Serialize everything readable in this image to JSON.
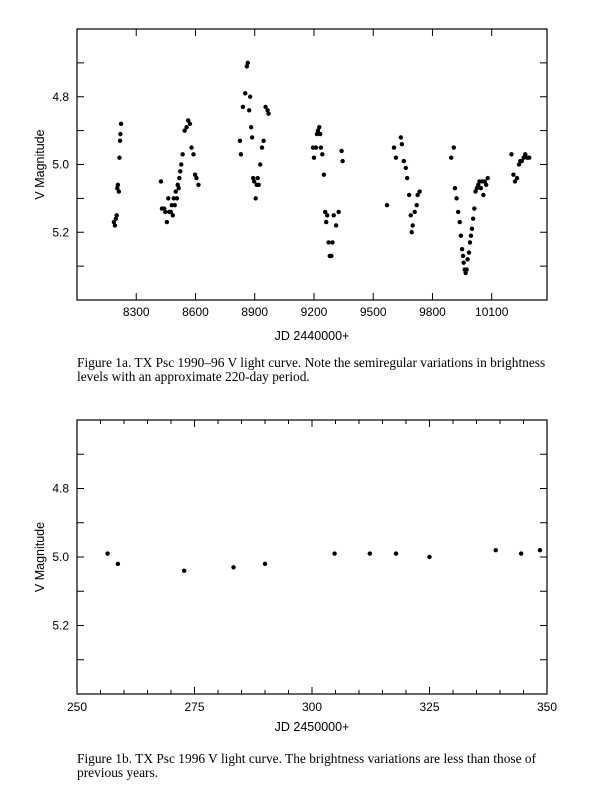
{
  "figures": [
    {
      "id": "fig1a",
      "caption": "Figure 1a. TX Psc 1990–96 V light curve. Note the semiregular variations in brightness levels with an approximate 220-day period.",
      "chart_data": {
        "type": "scatter",
        "title": "",
        "xlabel": "JD 2440000+",
        "ylabel": "V Magnitude",
        "xlim": [
          8000,
          10380
        ],
        "ylim": [
          5.4,
          4.6
        ],
        "y_inverted": true,
        "xticks": [
          8300,
          8600,
          8900,
          9200,
          9500,
          9800,
          10100
        ],
        "xticklabels": [
          "8300",
          "8600",
          "8900",
          "9200",
          "9500",
          "9800",
          "10100"
        ],
        "yticks": [
          4.7,
          4.8,
          4.9,
          5.0,
          5.1,
          5.2,
          5.3
        ],
        "yticklabels": [
          "",
          "4.8",
          "",
          "5.0",
          "",
          "5.2",
          ""
        ],
        "grid": false,
        "points": [
          [
            8187,
            5.17
          ],
          [
            8192,
            5.18
          ],
          [
            8197,
            5.16
          ],
          [
            8201,
            5.15
          ],
          [
            8204,
            5.07
          ],
          [
            8207,
            5.06
          ],
          [
            8212,
            5.08
          ],
          [
            8215,
            4.98
          ],
          [
            8218,
            4.93
          ],
          [
            8220,
            4.91
          ],
          [
            8223,
            4.88
          ],
          [
            8425,
            5.05
          ],
          [
            8430,
            5.13
          ],
          [
            8442,
            5.13
          ],
          [
            8447,
            5.14
          ],
          [
            8455,
            5.17
          ],
          [
            8462,
            5.1
          ],
          [
            8467,
            5.14
          ],
          [
            8475,
            5.14
          ],
          [
            8480,
            5.12
          ],
          [
            8485,
            5.15
          ],
          [
            8490,
            5.1
          ],
          [
            8495,
            5.12
          ],
          [
            8500,
            5.08
          ],
          [
            8506,
            5.1
          ],
          [
            8510,
            5.06
          ],
          [
            8515,
            5.07
          ],
          [
            8518,
            5.04
          ],
          [
            8523,
            5.02
          ],
          [
            8528,
            5.0
          ],
          [
            8535,
            4.97
          ],
          [
            8545,
            4.9
          ],
          [
            8555,
            4.89
          ],
          [
            8563,
            4.87
          ],
          [
            8572,
            4.88
          ],
          [
            8580,
            4.95
          ],
          [
            8590,
            4.97
          ],
          [
            8598,
            5.03
          ],
          [
            8605,
            5.04
          ],
          [
            8615,
            5.06
          ],
          [
            8825,
            4.93
          ],
          [
            8830,
            4.97
          ],
          [
            8840,
            4.83
          ],
          [
            8852,
            4.79
          ],
          [
            8860,
            4.71
          ],
          [
            8865,
            4.7
          ],
          [
            8872,
            4.84
          ],
          [
            8877,
            4.8
          ],
          [
            8882,
            4.89
          ],
          [
            8887,
            4.92
          ],
          [
            8892,
            5.04
          ],
          [
            8897,
            5.05
          ],
          [
            8905,
            5.1
          ],
          [
            8910,
            5.06
          ],
          [
            8915,
            5.04
          ],
          [
            8920,
            5.06
          ],
          [
            8928,
            5.0
          ],
          [
            8937,
            4.95
          ],
          [
            8945,
            4.93
          ],
          [
            8955,
            4.83
          ],
          [
            8965,
            4.84
          ],
          [
            8970,
            4.85
          ],
          [
            9195,
            4.95
          ],
          [
            9200,
            4.98
          ],
          [
            9210,
            4.95
          ],
          [
            9215,
            4.91
          ],
          [
            9220,
            4.9
          ],
          [
            9227,
            4.89
          ],
          [
            9232,
            4.91
          ],
          [
            9235,
            4.95
          ],
          [
            9242,
            4.97
          ],
          [
            9250,
            5.03
          ],
          [
            9257,
            5.14
          ],
          [
            9262,
            5.17
          ],
          [
            9267,
            5.15
          ],
          [
            9274,
            5.23
          ],
          [
            9280,
            5.27
          ],
          [
            9288,
            5.27
          ],
          [
            9294,
            5.23
          ],
          [
            9300,
            5.15
          ],
          [
            9312,
            5.18
          ],
          [
            9325,
            5.14
          ],
          [
            9340,
            4.96
          ],
          [
            9345,
            4.99
          ],
          [
            9570,
            5.12
          ],
          [
            9605,
            4.95
          ],
          [
            9615,
            4.98
          ],
          [
            9640,
            4.92
          ],
          [
            9645,
            4.94
          ],
          [
            9655,
            4.99
          ],
          [
            9665,
            5.01
          ],
          [
            9672,
            5.04
          ],
          [
            9682,
            5.09
          ],
          [
            9690,
            5.15
          ],
          [
            9695,
            5.2
          ],
          [
            9700,
            5.18
          ],
          [
            9710,
            5.14
          ],
          [
            9720,
            5.12
          ],
          [
            9725,
            5.09
          ],
          [
            9735,
            5.08
          ],
          [
            9895,
            4.98
          ],
          [
            9908,
            4.95
          ],
          [
            9914,
            5.07
          ],
          [
            9922,
            5.1
          ],
          [
            9930,
            5.14
          ],
          [
            9938,
            5.17
          ],
          [
            9944,
            5.21
          ],
          [
            9950,
            5.25
          ],
          [
            9955,
            5.27
          ],
          [
            9958,
            5.29
          ],
          [
            9963,
            5.31
          ],
          [
            9968,
            5.32
          ],
          [
            9973,
            5.31
          ],
          [
            9978,
            5.28
          ],
          [
            9985,
            5.26
          ],
          [
            9990,
            5.23
          ],
          [
            9995,
            5.21
          ],
          [
            10000,
            5.19
          ],
          [
            10006,
            5.16
          ],
          [
            10012,
            5.13
          ],
          [
            10018,
            5.08
          ],
          [
            10025,
            5.07
          ],
          [
            10032,
            5.06
          ],
          [
            10038,
            5.05
          ],
          [
            10045,
            5.07
          ],
          [
            10052,
            5.05
          ],
          [
            10058,
            5.09
          ],
          [
            10065,
            5.05
          ],
          [
            10072,
            5.06
          ],
          [
            10080,
            5.04
          ],
          [
            10200,
            4.97
          ],
          [
            10210,
            5.03
          ],
          [
            10218,
            5.05
          ],
          [
            10228,
            5.04
          ],
          [
            10238,
            5.0
          ],
          [
            10245,
            4.99
          ],
          [
            10252,
            4.99
          ],
          [
            10262,
            4.98
          ],
          [
            10270,
            4.97
          ],
          [
            10280,
            4.98
          ],
          [
            10290,
            4.98
          ]
        ]
      }
    },
    {
      "id": "fig1b",
      "caption": "Figure 1b. TX Psc 1996 V light curve. The brightness variations are less than those of previous years.",
      "chart_data": {
        "type": "scatter",
        "title": "",
        "xlabel": "JD 2450000+",
        "ylabel": "V Magnitude",
        "xlim": [
          250,
          350
        ],
        "ylim": [
          5.4,
          4.6
        ],
        "y_inverted": true,
        "xticks": [
          250,
          275,
          300,
          325,
          350
        ],
        "xticklabels": [
          "250",
          "275",
          "300",
          "325",
          "350"
        ],
        "xminor": [
          255,
          260,
          265,
          270,
          280,
          285,
          290,
          295,
          305,
          310,
          315,
          320,
          330,
          335,
          340,
          345
        ],
        "yticks": [
          4.7,
          4.8,
          4.9,
          5.0,
          5.1,
          5.2,
          5.3
        ],
        "yticklabels": [
          "",
          "4.8",
          "",
          "5.0",
          "",
          "5.2",
          ""
        ],
        "grid": false,
        "points": [
          [
            256.5,
            4.99
          ],
          [
            258.7,
            5.02
          ],
          [
            272.8,
            5.04
          ],
          [
            283.3,
            5.03
          ],
          [
            290.0,
            5.02
          ],
          [
            304.8,
            4.99
          ],
          [
            312.3,
            4.99
          ],
          [
            317.9,
            4.99
          ],
          [
            325.0,
            5.0
          ],
          [
            339.1,
            4.98
          ],
          [
            344.5,
            4.99
          ],
          [
            348.5,
            4.98
          ]
        ]
      }
    }
  ]
}
